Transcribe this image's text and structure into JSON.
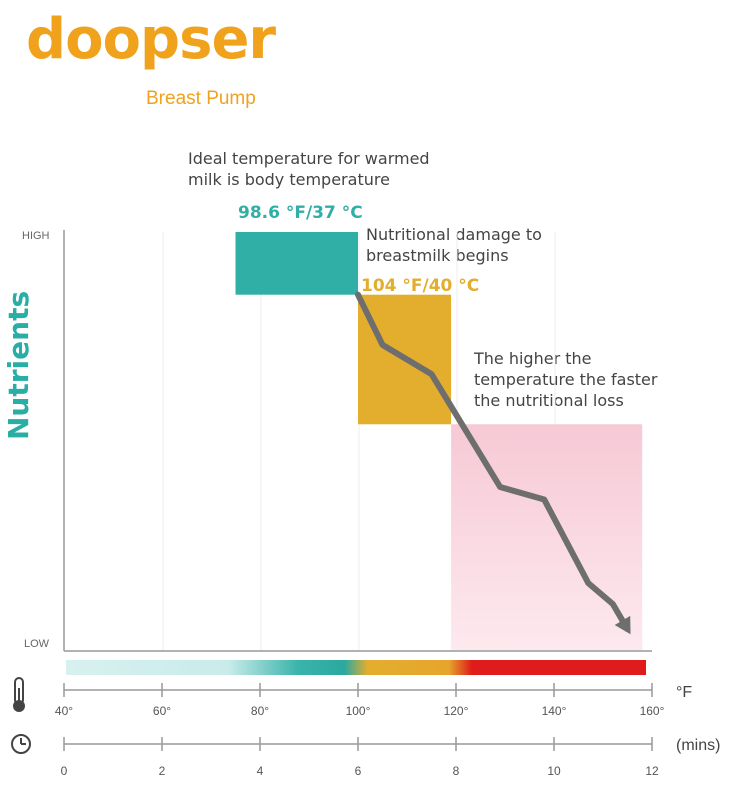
{
  "brand": {
    "name": "doopser",
    "tagline": "Breast Pump"
  },
  "annotations": {
    "ideal_text": "Ideal temperature for warmed\nmilk is body temperature",
    "ideal_temp": "98.6 °F/37 °C",
    "damage_text": "Nutritional damage to\nbreastmilk begins",
    "damage_temp": "104 °F/40 °C",
    "loss_text": "The higher the\ntemperature the faster\nthe nutritional loss"
  },
  "colors": {
    "teal": "#2fafa6",
    "amber": "#e3ae2e",
    "pink": "#f8d3dd",
    "line": "#6e6e6e",
    "axis": "#999999",
    "scale_red": "#e01b1b",
    "scale_light": "#d7f1f0"
  },
  "chart_data": {
    "type": "line",
    "title": "",
    "ylabel": "Nutrients",
    "y_tick_labels": [
      "HIGH",
      "LOW"
    ],
    "ylim": [
      0,
      1
    ],
    "x_axes": [
      {
        "unit": "°F",
        "ticks": [
          "40°",
          "60°",
          "80°",
          "100°",
          "120°",
          "140°",
          "160°"
        ],
        "range": [
          40,
          160
        ]
      },
      {
        "unit": "(mins)",
        "ticks": [
          "0",
          "2",
          "4",
          "6",
          "8",
          "10",
          "12"
        ],
        "range": [
          0,
          12
        ]
      }
    ],
    "series": [
      {
        "x": [
          100,
          105,
          115,
          129,
          138,
          147,
          152,
          155
        ],
        "y": [
          0.85,
          0.73,
          0.66,
          0.39,
          0.36,
          0.16,
          0.11,
          0.05
        ]
      }
    ],
    "regions": [
      {
        "label": "98.6 °F/37 °C",
        "x_range": [
          75,
          100
        ],
        "y_range": [
          0.85,
          1.0
        ],
        "color": "#2fafa6"
      },
      {
        "label": "104 °F/40 °C",
        "x_range": [
          100,
          119
        ],
        "y_range": [
          0.54,
          0.85
        ],
        "color": "#e3ae2e"
      },
      {
        "label": "",
        "x_range": [
          119,
          158
        ],
        "y_range": [
          0.0,
          0.54
        ],
        "color": "#f8d3dd"
      }
    ],
    "grid": true,
    "legend": "none"
  }
}
